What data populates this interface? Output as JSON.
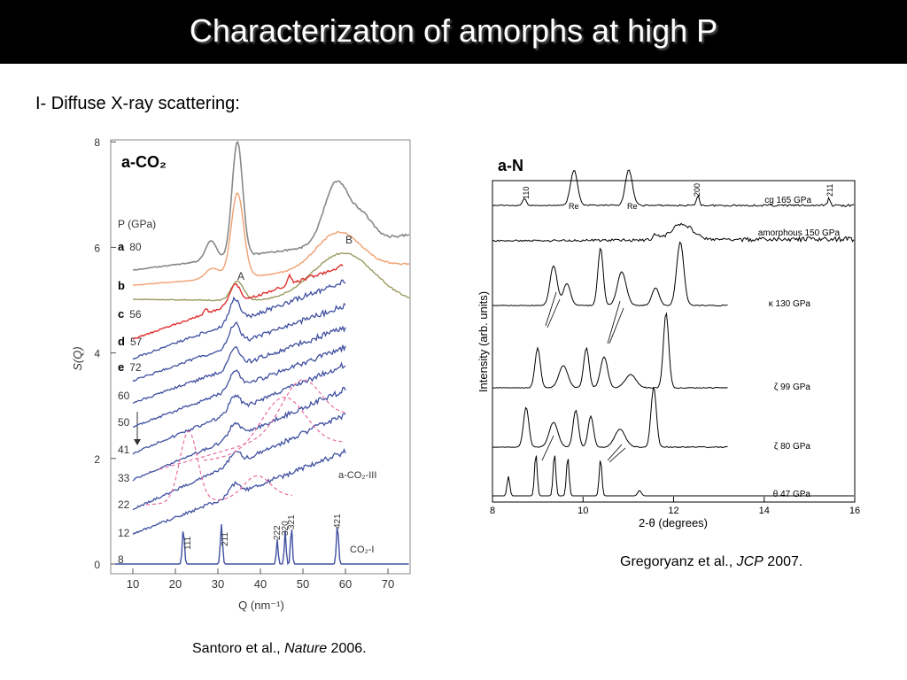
{
  "header": {
    "title": "Characterizaton of amorphs at high P"
  },
  "subtitle": "I- Diffuse X-ray scattering:",
  "figures": [
    {
      "label": "a-CO₂",
      "y_axis_label": "S(Q)",
      "x_axis_label": "Q (nm⁻¹)",
      "xticks": [
        "10",
        "20",
        "30",
        "40",
        "50",
        "60",
        "70"
      ],
      "yticks": [
        "0",
        "2",
        "4",
        "6",
        "8"
      ],
      "legend_heading": "P (GPa)",
      "pressures": [
        {
          "key": "a",
          "value": "80"
        },
        {
          "key": "b"
        },
        {
          "key": "c",
          "value": "56"
        },
        {
          "key": "d",
          "value": "57"
        },
        {
          "key": "e",
          "value": "72"
        },
        {
          "value": "60"
        },
        {
          "value": "50"
        },
        {
          "value": "41"
        },
        {
          "value": "33"
        },
        {
          "value": "22"
        },
        {
          "value": "12"
        },
        {
          "value": "8"
        }
      ],
      "peak_labels": [
        "A",
        "B",
        "111",
        "211",
        "222",
        "320",
        "321",
        "421",
        "CO₂-I",
        "a-CO₂-III"
      ],
      "caption": {
        "authors": "Santoro et al., ",
        "journal": "Nature",
        "year": " 2006."
      }
    },
    {
      "label": "a-N",
      "y_axis_label": "Intensity (arb. units)",
      "x_axis_label": "2-θ (degrees)",
      "xticks": [
        "8",
        "10",
        "12",
        "14",
        "16"
      ],
      "curve_labels": [
        "cg 165 GPa",
        "amorphous 150 GPa",
        "κ  130 GPa",
        "ζ 99 GPa",
        "ζ 80 GPa",
        "θ 47 GPa"
      ],
      "peak_labels": [
        "110",
        "200",
        "211",
        "Re",
        "Re"
      ],
      "caption": {
        "authors": "Gregoryanz et al., ",
        "journal": "JCP",
        "year": " 2007."
      }
    }
  ]
}
